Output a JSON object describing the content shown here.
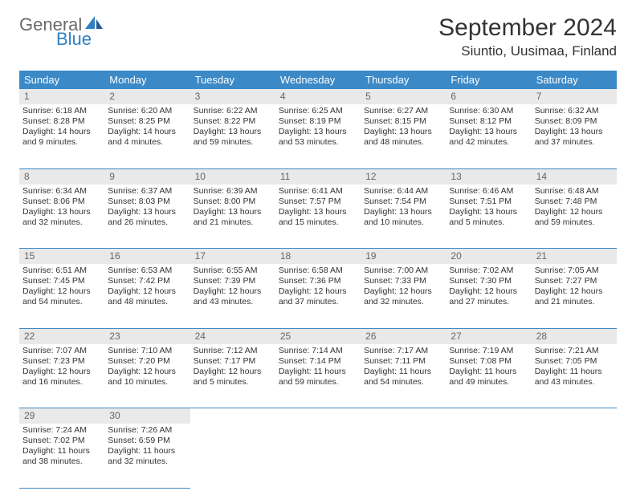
{
  "logo": {
    "general": "General",
    "blue": "Blue",
    "sail_color": "#2f7fc2"
  },
  "header": {
    "title": "September 2024",
    "location": "Siuntio, Uusimaa, Finland"
  },
  "weekdays": [
    "Sunday",
    "Monday",
    "Tuesday",
    "Wednesday",
    "Thursday",
    "Friday",
    "Saturday"
  ],
  "colors": {
    "header_bg": "#3b89c7",
    "header_fg": "#ffffff",
    "daynum_bg": "#e9e9e9",
    "daynum_fg": "#666666",
    "rule": "#3b89c7",
    "text": "#333333"
  },
  "weeks": [
    [
      {
        "n": "1",
        "sr": "Sunrise: 6:18 AM",
        "ss": "Sunset: 8:28 PM",
        "dl": "Daylight: 14 hours and 9 minutes."
      },
      {
        "n": "2",
        "sr": "Sunrise: 6:20 AM",
        "ss": "Sunset: 8:25 PM",
        "dl": "Daylight: 14 hours and 4 minutes."
      },
      {
        "n": "3",
        "sr": "Sunrise: 6:22 AM",
        "ss": "Sunset: 8:22 PM",
        "dl": "Daylight: 13 hours and 59 minutes."
      },
      {
        "n": "4",
        "sr": "Sunrise: 6:25 AM",
        "ss": "Sunset: 8:19 PM",
        "dl": "Daylight: 13 hours and 53 minutes."
      },
      {
        "n": "5",
        "sr": "Sunrise: 6:27 AM",
        "ss": "Sunset: 8:15 PM",
        "dl": "Daylight: 13 hours and 48 minutes."
      },
      {
        "n": "6",
        "sr": "Sunrise: 6:30 AM",
        "ss": "Sunset: 8:12 PM",
        "dl": "Daylight: 13 hours and 42 minutes."
      },
      {
        "n": "7",
        "sr": "Sunrise: 6:32 AM",
        "ss": "Sunset: 8:09 PM",
        "dl": "Daylight: 13 hours and 37 minutes."
      }
    ],
    [
      {
        "n": "8",
        "sr": "Sunrise: 6:34 AM",
        "ss": "Sunset: 8:06 PM",
        "dl": "Daylight: 13 hours and 32 minutes."
      },
      {
        "n": "9",
        "sr": "Sunrise: 6:37 AM",
        "ss": "Sunset: 8:03 PM",
        "dl": "Daylight: 13 hours and 26 minutes."
      },
      {
        "n": "10",
        "sr": "Sunrise: 6:39 AM",
        "ss": "Sunset: 8:00 PM",
        "dl": "Daylight: 13 hours and 21 minutes."
      },
      {
        "n": "11",
        "sr": "Sunrise: 6:41 AM",
        "ss": "Sunset: 7:57 PM",
        "dl": "Daylight: 13 hours and 15 minutes."
      },
      {
        "n": "12",
        "sr": "Sunrise: 6:44 AM",
        "ss": "Sunset: 7:54 PM",
        "dl": "Daylight: 13 hours and 10 minutes."
      },
      {
        "n": "13",
        "sr": "Sunrise: 6:46 AM",
        "ss": "Sunset: 7:51 PM",
        "dl": "Daylight: 13 hours and 5 minutes."
      },
      {
        "n": "14",
        "sr": "Sunrise: 6:48 AM",
        "ss": "Sunset: 7:48 PM",
        "dl": "Daylight: 12 hours and 59 minutes."
      }
    ],
    [
      {
        "n": "15",
        "sr": "Sunrise: 6:51 AM",
        "ss": "Sunset: 7:45 PM",
        "dl": "Daylight: 12 hours and 54 minutes."
      },
      {
        "n": "16",
        "sr": "Sunrise: 6:53 AM",
        "ss": "Sunset: 7:42 PM",
        "dl": "Daylight: 12 hours and 48 minutes."
      },
      {
        "n": "17",
        "sr": "Sunrise: 6:55 AM",
        "ss": "Sunset: 7:39 PM",
        "dl": "Daylight: 12 hours and 43 minutes."
      },
      {
        "n": "18",
        "sr": "Sunrise: 6:58 AM",
        "ss": "Sunset: 7:36 PM",
        "dl": "Daylight: 12 hours and 37 minutes."
      },
      {
        "n": "19",
        "sr": "Sunrise: 7:00 AM",
        "ss": "Sunset: 7:33 PM",
        "dl": "Daylight: 12 hours and 32 minutes."
      },
      {
        "n": "20",
        "sr": "Sunrise: 7:02 AM",
        "ss": "Sunset: 7:30 PM",
        "dl": "Daylight: 12 hours and 27 minutes."
      },
      {
        "n": "21",
        "sr": "Sunrise: 7:05 AM",
        "ss": "Sunset: 7:27 PM",
        "dl": "Daylight: 12 hours and 21 minutes."
      }
    ],
    [
      {
        "n": "22",
        "sr": "Sunrise: 7:07 AM",
        "ss": "Sunset: 7:23 PM",
        "dl": "Daylight: 12 hours and 16 minutes."
      },
      {
        "n": "23",
        "sr": "Sunrise: 7:10 AM",
        "ss": "Sunset: 7:20 PM",
        "dl": "Daylight: 12 hours and 10 minutes."
      },
      {
        "n": "24",
        "sr": "Sunrise: 7:12 AM",
        "ss": "Sunset: 7:17 PM",
        "dl": "Daylight: 12 hours and 5 minutes."
      },
      {
        "n": "25",
        "sr": "Sunrise: 7:14 AM",
        "ss": "Sunset: 7:14 PM",
        "dl": "Daylight: 11 hours and 59 minutes."
      },
      {
        "n": "26",
        "sr": "Sunrise: 7:17 AM",
        "ss": "Sunset: 7:11 PM",
        "dl": "Daylight: 11 hours and 54 minutes."
      },
      {
        "n": "27",
        "sr": "Sunrise: 7:19 AM",
        "ss": "Sunset: 7:08 PM",
        "dl": "Daylight: 11 hours and 49 minutes."
      },
      {
        "n": "28",
        "sr": "Sunrise: 7:21 AM",
        "ss": "Sunset: 7:05 PM",
        "dl": "Daylight: 11 hours and 43 minutes."
      }
    ],
    [
      {
        "n": "29",
        "sr": "Sunrise: 7:24 AM",
        "ss": "Sunset: 7:02 PM",
        "dl": "Daylight: 11 hours and 38 minutes."
      },
      {
        "n": "30",
        "sr": "Sunrise: 7:26 AM",
        "ss": "Sunset: 6:59 PM",
        "dl": "Daylight: 11 hours and 32 minutes."
      },
      null,
      null,
      null,
      null,
      null
    ]
  ]
}
